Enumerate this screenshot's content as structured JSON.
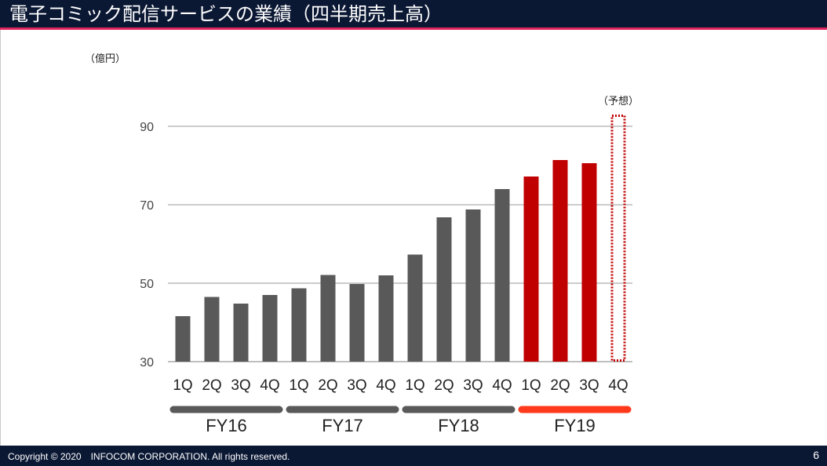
{
  "header": {
    "title": "電子コミック配信サービスの業績（四半期売上高）"
  },
  "footer": {
    "copyright": "Copyright © 2020　INFOCOM CORPORATION. All rights reserved.",
    "page": "6"
  },
  "colors": {
    "header_bg": "#0b1834",
    "header_border": "#e0245e",
    "past": "#595959",
    "current": "#c00000",
    "current_group_bar": "#ff3a1c",
    "gridline": "#9a9a9a"
  },
  "chart_data": {
    "type": "bar",
    "unit_label": "（億円）",
    "forecast_label": "（予想）",
    "ylim": [
      30,
      90
    ],
    "yticks": [
      30,
      50,
      70,
      90
    ],
    "grid": true,
    "categories": [
      "1Q",
      "2Q",
      "3Q",
      "4Q",
      "1Q",
      "2Q",
      "3Q",
      "4Q",
      "1Q",
      "2Q",
      "3Q",
      "4Q",
      "1Q",
      "2Q",
      "3Q",
      "4Q"
    ],
    "values": [
      41.6,
      46.5,
      44.8,
      47.0,
      48.7,
      52.1,
      49.8,
      52.0,
      57.3,
      66.8,
      68.8,
      74.0,
      77.2,
      81.4,
      80.6,
      93.0
    ],
    "forecast": [
      false,
      false,
      false,
      false,
      false,
      false,
      false,
      false,
      false,
      false,
      false,
      false,
      false,
      false,
      false,
      true
    ],
    "groups": [
      {
        "label": "FY16",
        "highlight": false
      },
      {
        "label": "FY17",
        "highlight": false
      },
      {
        "label": "FY18",
        "highlight": false
      },
      {
        "label": "FY19",
        "highlight": true
      }
    ]
  }
}
